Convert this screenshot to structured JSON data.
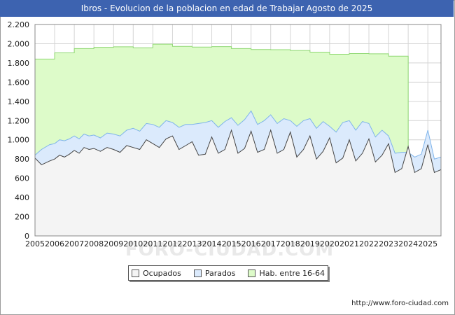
{
  "title": "Ibros - Evolucion de la poblacion en edad de Trabajar Agosto de 2025",
  "source": "http://www.foro-ciudad.com",
  "watermark": "FORO-CIUDAD.COM",
  "colors": {
    "title_bg": "#3d63b0",
    "hab_fill": "#ddfbc9",
    "hab_line": "#8fd872",
    "parados_fill": "#dbeafc",
    "parados_line": "#7fb4ea",
    "ocupados_fill": "#f4f4f4",
    "ocupados_line": "#444444",
    "grid": "#d4d4d4"
  },
  "legend": [
    {
      "label": "Ocupados",
      "color": "#f4f4f4"
    },
    {
      "label": "Parados",
      "color": "#dbeafc"
    },
    {
      "label": "Hab. entre 16-64",
      "color": "#ddfbc9"
    }
  ],
  "chart_data": {
    "type": "area",
    "title": "Ibros - Evolucion de la poblacion en edad de Trabajar Agosto de 2025",
    "xlabel": "",
    "ylabel": "",
    "xlim": [
      2005,
      2025.67
    ],
    "ylim": [
      0,
      2200
    ],
    "yticks": [
      0,
      200,
      400,
      600,
      800,
      1000,
      1200,
      1400,
      1600,
      1800,
      2000,
      2200
    ],
    "ytick_labels": [
      "0",
      "200",
      "400",
      "600",
      "800",
      "1.000",
      "1.200",
      "1.400",
      "1.600",
      "1.800",
      "2.000",
      "2.200"
    ],
    "xticks": [
      2005,
      2006,
      2007,
      2008,
      2009,
      2010,
      2011,
      2012,
      2013,
      2014,
      2015,
      2016,
      2017,
      2018,
      2019,
      2020,
      2021,
      2022,
      2023,
      2024,
      2025
    ],
    "grid": true,
    "legend_position": "bottom-center",
    "series": [
      {
        "name": "Hab. entre 16-64",
        "x": [
          2005,
          2006,
          2007,
          2008,
          2009,
          2010,
          2011,
          2012,
          2013,
          2014,
          2015,
          2016,
          2017,
          2018,
          2019,
          2020,
          2021,
          2022,
          2023,
          2024
        ],
        "values": [
          1840,
          1905,
          1950,
          1962,
          1968,
          1958,
          1995,
          1972,
          1965,
          1970,
          1950,
          1940,
          1938,
          1930,
          1912,
          1890,
          1898,
          1895,
          1870,
          0
        ]
      },
      {
        "name": "Parados (ocupados + parados)",
        "x": [
          2005.0,
          2005.33,
          2005.75,
          2006.0,
          2006.25,
          2006.5,
          2006.75,
          2007.0,
          2007.25,
          2007.5,
          2007.75,
          2008.0,
          2008.33,
          2008.67,
          2009.0,
          2009.33,
          2009.67,
          2010.0,
          2010.33,
          2010.67,
          2011.0,
          2011.33,
          2011.67,
          2012.0,
          2012.33,
          2012.67,
          2013.0,
          2013.33,
          2013.67,
          2014.0,
          2014.33,
          2014.67,
          2015.0,
          2015.33,
          2015.67,
          2016.0,
          2016.33,
          2016.67,
          2017.0,
          2017.33,
          2017.67,
          2018.0,
          2018.33,
          2018.67,
          2019.0,
          2019.33,
          2019.67,
          2020.0,
          2020.33,
          2020.67,
          2021.0,
          2021.33,
          2021.67,
          2022.0,
          2022.33,
          2022.67,
          2023.0,
          2023.33,
          2023.67,
          2024.0,
          2024.33,
          2024.67,
          2025.0,
          2025.33,
          2025.67
        ],
        "values": [
          840,
          900,
          950,
          960,
          1000,
          990,
          1010,
          1040,
          1010,
          1060,
          1040,
          1050,
          1020,
          1070,
          1060,
          1040,
          1100,
          1120,
          1090,
          1170,
          1160,
          1130,
          1200,
          1180,
          1130,
          1160,
          1160,
          1170,
          1180,
          1200,
          1130,
          1190,
          1230,
          1150,
          1210,
          1300,
          1160,
          1200,
          1260,
          1170,
          1220,
          1200,
          1140,
          1200,
          1220,
          1120,
          1190,
          1140,
          1080,
          1180,
          1200,
          1100,
          1190,
          1170,
          1030,
          1100,
          1040,
          860,
          870,
          870,
          820,
          850,
          1100,
          800,
          820
        ]
      },
      {
        "name": "Ocupados",
        "x": [
          2005.0,
          2005.33,
          2005.75,
          2006.0,
          2006.25,
          2006.5,
          2006.75,
          2007.0,
          2007.25,
          2007.5,
          2007.75,
          2008.0,
          2008.33,
          2008.67,
          2009.0,
          2009.33,
          2009.67,
          2010.0,
          2010.33,
          2010.67,
          2011.0,
          2011.33,
          2011.67,
          2012.0,
          2012.33,
          2012.67,
          2013.0,
          2013.33,
          2013.67,
          2014.0,
          2014.33,
          2014.67,
          2015.0,
          2015.33,
          2015.67,
          2016.0,
          2016.33,
          2016.67,
          2017.0,
          2017.33,
          2017.67,
          2018.0,
          2018.33,
          2018.67,
          2019.0,
          2019.33,
          2019.67,
          2020.0,
          2020.33,
          2020.67,
          2021.0,
          2021.33,
          2021.67,
          2022.0,
          2022.33,
          2022.67,
          2023.0,
          2023.33,
          2023.67,
          2024.0,
          2024.33,
          2024.67,
          2025.0,
          2025.33,
          2025.67
        ],
        "values": [
          810,
          740,
          780,
          800,
          840,
          820,
          850,
          890,
          860,
          920,
          900,
          910,
          880,
          920,
          900,
          870,
          940,
          920,
          900,
          1000,
          960,
          920,
          1010,
          1040,
          900,
          940,
          980,
          840,
          850,
          1030,
          860,
          900,
          1100,
          860,
          910,
          1090,
          870,
          900,
          1100,
          860,
          900,
          1080,
          820,
          900,
          1040,
          800,
          880,
          1020,
          760,
          810,
          1000,
          780,
          860,
          1010,
          770,
          840,
          960,
          660,
          700,
          930,
          660,
          700,
          950,
          660,
          690
        ]
      }
    ]
  }
}
